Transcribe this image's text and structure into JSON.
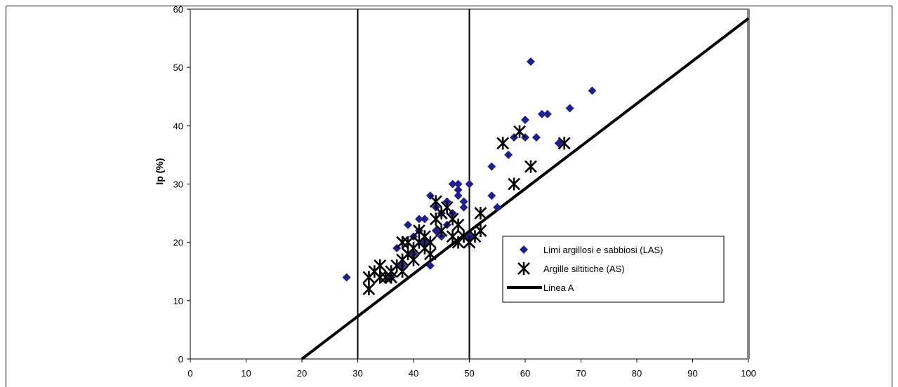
{
  "chart_data": {
    "type": "scatter",
    "title": "",
    "xlabel": "",
    "ylabel": "Ip (%)",
    "xlim": [
      0,
      100
    ],
    "ylim": [
      0,
      60
    ],
    "x_ticks": [
      "0",
      "10",
      "20",
      "30",
      "40",
      "50",
      "60",
      "70",
      "80",
      "90",
      "100"
    ],
    "y_ticks": [
      "0",
      "10",
      "20",
      "30",
      "40",
      "50",
      "60"
    ],
    "grid": false,
    "vertical_lines": [
      30,
      50
    ],
    "legend_position": "bottom-right",
    "series": [
      {
        "name": "Limi argillosi e sabbiosi (LAS)",
        "marker": "diamond",
        "color": "#1f1f8f",
        "points": [
          [
            28,
            14
          ],
          [
            36,
            14
          ],
          [
            37,
            19
          ],
          [
            38,
            16
          ],
          [
            39,
            23
          ],
          [
            40,
            18
          ],
          [
            40,
            21
          ],
          [
            41,
            24
          ],
          [
            41,
            22
          ],
          [
            42,
            20
          ],
          [
            42,
            24
          ],
          [
            43,
            28
          ],
          [
            43,
            16
          ],
          [
            44,
            22
          ],
          [
            44,
            26
          ],
          [
            45,
            25
          ],
          [
            45,
            21
          ],
          [
            46,
            27
          ],
          [
            46,
            23
          ],
          [
            47,
            30
          ],
          [
            47,
            25
          ],
          [
            48,
            30
          ],
          [
            48,
            28
          ],
          [
            48,
            29
          ],
          [
            49,
            26
          ],
          [
            49,
            27
          ],
          [
            50,
            30
          ],
          [
            50,
            21
          ],
          [
            54,
            33
          ],
          [
            54,
            28
          ],
          [
            55,
            26
          ],
          [
            57,
            35
          ],
          [
            58,
            38
          ],
          [
            60,
            41
          ],
          [
            60,
            38
          ],
          [
            61,
            51
          ],
          [
            62,
            38
          ],
          [
            63,
            42
          ],
          [
            64,
            42
          ],
          [
            66,
            37
          ],
          [
            68,
            43
          ],
          [
            72,
            46
          ]
        ]
      },
      {
        "name": "Argille siltitiche (AS)",
        "marker": "asterisk",
        "color": "#000000",
        "points": [
          [
            32,
            12
          ],
          [
            32,
            14
          ],
          [
            33,
            15
          ],
          [
            34,
            14
          ],
          [
            34,
            16
          ],
          [
            35,
            14
          ],
          [
            36,
            14
          ],
          [
            36,
            15
          ],
          [
            37,
            16
          ],
          [
            38,
            15
          ],
          [
            38,
            17
          ],
          [
            38,
            20
          ],
          [
            39,
            18
          ],
          [
            39,
            20
          ],
          [
            40,
            17
          ],
          [
            40,
            19
          ],
          [
            41,
            20
          ],
          [
            41,
            22
          ],
          [
            42,
            19
          ],
          [
            42,
            21
          ],
          [
            43,
            18
          ],
          [
            43,
            20
          ],
          [
            44,
            24
          ],
          [
            44,
            27
          ],
          [
            45,
            22
          ],
          [
            45,
            25
          ],
          [
            46,
            26
          ],
          [
            47,
            21
          ],
          [
            47,
            24
          ],
          [
            48,
            20
          ],
          [
            48,
            23
          ],
          [
            49,
            21
          ],
          [
            50,
            20
          ],
          [
            51,
            21
          ],
          [
            52,
            22
          ],
          [
            52,
            25
          ],
          [
            56,
            37
          ],
          [
            58,
            30
          ],
          [
            59,
            39
          ],
          [
            61,
            33
          ],
          [
            67,
            37
          ]
        ]
      },
      {
        "name": "Linea A",
        "marker": "line",
        "color": "#000000",
        "points": [
          [
            20,
            0
          ],
          [
            100,
            58.4
          ]
        ]
      }
    ]
  }
}
